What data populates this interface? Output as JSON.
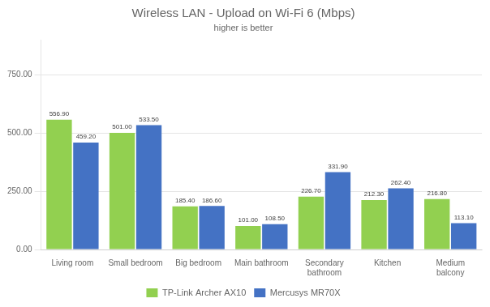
{
  "chart_data": {
    "type": "bar",
    "title": "Wireless LAN - Upload on Wi-Fi 6 (Mbps)",
    "subtitle": "higher is better",
    "categories": [
      "Living room",
      "Small bedroom",
      "Big bedroom",
      "Main bathroom",
      "Secondary\nbathroom",
      "Kitchen",
      "Medium\nbalcony"
    ],
    "series": [
      {
        "name": "TP-Link Archer AX10",
        "color": "#92d050",
        "values": [
          556.9,
          501.0,
          185.4,
          101.0,
          226.7,
          212.3,
          216.8
        ],
        "value_labels": [
          "556.90",
          "501.00",
          "185.40",
          "101.00",
          "226.70",
          "212.30",
          "216.80"
        ]
      },
      {
        "name": "Mercusys MR70X",
        "color": "#4472c4",
        "values": [
          459.2,
          533.5,
          186.6,
          108.5,
          331.9,
          262.4,
          113.1
        ],
        "value_labels": [
          "459.20",
          "533.50",
          "186.60",
          "108.50",
          "331.90",
          "262.40",
          "113.10"
        ]
      }
    ],
    "ylim": [
      0,
      900
    ],
    "yticks": [
      {
        "value": 0,
        "label": "0.00"
      },
      {
        "value": 250,
        "label": "250.00"
      },
      {
        "value": 500,
        "label": "500.00"
      },
      {
        "value": 750,
        "label": "750.00"
      }
    ],
    "grid": true,
    "legend": "bottom",
    "data_labels": true
  }
}
